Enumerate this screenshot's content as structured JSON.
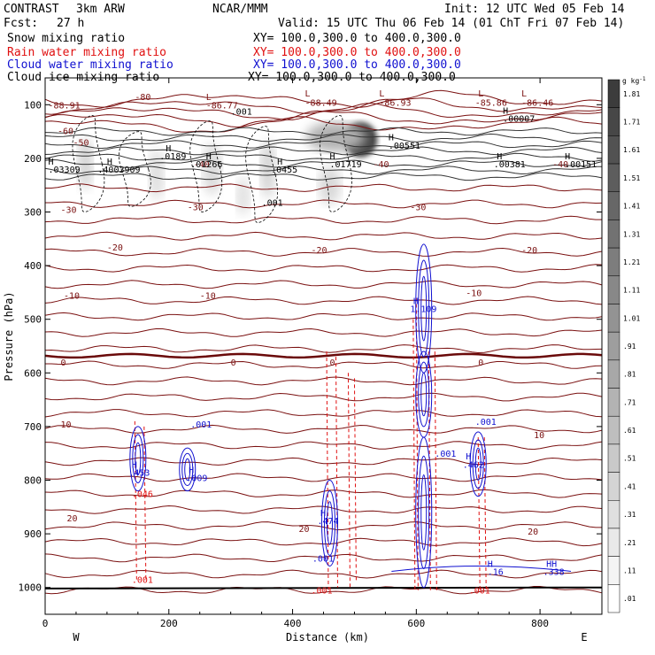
{
  "header": {
    "project": "CONTRAST",
    "model": "3km ARW",
    "org": "NCAR/MMM",
    "init": "Init: 12 UTC Wed 05 Feb 14",
    "fcst_label": "Fcst:",
    "fcst_value": "27 h",
    "valid": "Valid: 15 UTC Thu 06 Feb 14 (01 ChT Fri 07 Feb 14)"
  },
  "fields": [
    {
      "name": "Snow mixing ratio",
      "xy": "XY= 100.0,300.0 to 400.0,300.0",
      "color": "#000000"
    },
    {
      "name": "Rain water mixing ratio",
      "xy": "XY= 100.0,300.0 to 400.0,300.0",
      "color": "#e01010"
    },
    {
      "name": "Cloud water mixing ratio",
      "xy": "XY= 100.0,300.0 to 400.0,300.0",
      "color": "#1010d0"
    },
    {
      "name": "Cloud ice mixing ratio",
      "xy": "XY= 100.0,300.0 to 400.0,300.0",
      "color": "#000000"
    }
  ],
  "chart_data": {
    "type": "heatmap",
    "xlabel": "Distance (km)",
    "ylabel": "Pressure (hPa)",
    "xlim": [
      0,
      900
    ],
    "ylim": [
      1050,
      50
    ],
    "x_ticks": [
      "0",
      "200",
      "400",
      "600",
      "800"
    ],
    "y_ticks": [
      "100",
      "200",
      "300",
      "400",
      "500",
      "600",
      "700",
      "800",
      "900",
      "1000"
    ],
    "direction_left": "W",
    "direction_right": "E",
    "colorbar": {
      "unit": "g kg",
      "unit_exp": "-1",
      "levels": [
        "1.81",
        "1.71",
        "1.61",
        "1.51",
        "1.41",
        "1.31",
        "1.21",
        "1.11",
        "1.01",
        ".91",
        ".81",
        ".71",
        ".61",
        ".51",
        ".41",
        ".31",
        ".21",
        ".11",
        ".01"
      ]
    },
    "temperature_contours": {
      "color": "#7a1010",
      "labels": [
        {
          "text": "-80",
          "x": 145,
          "p": 85
        },
        {
          "text": "-60",
          "x": 20,
          "p": 148
        },
        {
          "text": "-50",
          "x": 45,
          "p": 170
        },
        {
          "text": "-40",
          "x": 240,
          "p": 210
        },
        {
          "text": "-40",
          "x": 530,
          "p": 210
        },
        {
          "text": "-40",
          "x": 820,
          "p": 210
        },
        {
          "text": "-30",
          "x": 25,
          "p": 295
        },
        {
          "text": "-30",
          "x": 230,
          "p": 290
        },
        {
          "text": "-30",
          "x": 590,
          "p": 290
        },
        {
          "text": "-20",
          "x": 100,
          "p": 365
        },
        {
          "text": "-20",
          "x": 430,
          "p": 370
        },
        {
          "text": "-20",
          "x": 770,
          "p": 370
        },
        {
          "text": "-10",
          "x": 30,
          "p": 455
        },
        {
          "text": "-10",
          "x": 250,
          "p": 455
        },
        {
          "text": "-10",
          "x": 680,
          "p": 450
        },
        {
          "text": "0",
          "x": 25,
          "p": 580
        },
        {
          "text": "0",
          "x": 300,
          "p": 580
        },
        {
          "text": "0",
          "x": 460,
          "p": 580
        },
        {
          "text": "0",
          "x": 700,
          "p": 580
        },
        {
          "text": "10",
          "x": 25,
          "p": 695
        },
        {
          "text": "10",
          "x": 790,
          "p": 715
        },
        {
          "text": "20",
          "x": 35,
          "p": 870
        },
        {
          "text": "20",
          "x": 410,
          "p": 890
        },
        {
          "text": "20",
          "x": 780,
          "p": 895
        }
      ]
    },
    "extrema_labels": [
      {
        "text": "-88.91",
        "x": 5,
        "p": 100,
        "color": "#7a1010"
      },
      {
        "text": "L",
        "x": 260,
        "p": 85,
        "color": "#7a1010"
      },
      {
        "text": "-86.77",
        "x": 260,
        "p": 100,
        "color": "#7a1010"
      },
      {
        "text": "L",
        "x": 420,
        "p": 78,
        "color": "#7a1010"
      },
      {
        "text": "-88.49",
        "x": 420,
        "p": 95,
        "color": "#7a1010"
      },
      {
        "text": "L",
        "x": 540,
        "p": 78,
        "color": "#7a1010"
      },
      {
        "text": "-86.93",
        "x": 540,
        "p": 95,
        "color": "#7a1010"
      },
      {
        "text": "L",
        "x": 700,
        "p": 78,
        "color": "#7a1010"
      },
      {
        "text": "-85.86",
        "x": 695,
        "p": 95,
        "color": "#7a1010"
      },
      {
        "text": "L",
        "x": 770,
        "p": 78,
        "color": "#7a1010"
      },
      {
        "text": "-86.46",
        "x": 770,
        "p": 95,
        "color": "#7a1010"
      },
      {
        "text": ".001",
        "x": 300,
        "p": 112,
        "color": "#000000"
      },
      {
        "text": "H",
        "x": 740,
        "p": 110,
        "color": "#000000"
      },
      {
        "text": ".00007",
        "x": 740,
        "p": 125,
        "color": "#000000"
      },
      {
        "text": "H",
        "x": 195,
        "p": 180,
        "color": "#000000"
      },
      {
        "text": ".0189",
        "x": 185,
        "p": 195,
        "color": "#000000"
      },
      {
        "text": "H",
        "x": 555,
        "p": 160,
        "color": "#000000"
      },
      {
        "text": ".00551",
        "x": 555,
        "p": 175,
        "color": "#000000"
      },
      {
        "text": "H",
        "x": 5,
        "p": 205,
        "color": "#000000"
      },
      {
        "text": ".03309",
        "x": 5,
        "p": 220,
        "color": "#000000"
      },
      {
        "text": "H",
        "x": 100,
        "p": 205,
        "color": "#000000"
      },
      {
        "text": ".4003909",
        "x": 85,
        "p": 220,
        "color": "#000000"
      },
      {
        "text": "H",
        "x": 260,
        "p": 195,
        "color": "#000000"
      },
      {
        "text": ".01266",
        "x": 235,
        "p": 210,
        "color": "#000000"
      },
      {
        "text": "H",
        "x": 375,
        "p": 205,
        "color": "#000000"
      },
      {
        "text": ".0455",
        "x": 365,
        "p": 220,
        "color": "#000000"
      },
      {
        "text": "H",
        "x": 460,
        "p": 195,
        "color": "#000000"
      },
      {
        "text": ".01719",
        "x": 460,
        "p": 210,
        "color": "#000000"
      },
      {
        "text": "H",
        "x": 730,
        "p": 195,
        "color": "#000000"
      },
      {
        "text": ".00381",
        "x": 725,
        "p": 210,
        "color": "#000000"
      },
      {
        "text": "H",
        "x": 840,
        "p": 195,
        "color": "#000000"
      },
      {
        "text": ".00151",
        "x": 840,
        "p": 210,
        "color": "#000000"
      },
      {
        "text": ".001",
        "x": 350,
        "p": 282,
        "color": "#000000"
      },
      {
        "text": ".001",
        "x": 235,
        "p": 695,
        "color": "#1010d0"
      },
      {
        "text": "H",
        "x": 140,
        "p": 770,
        "color": "#1010d0"
      },
      {
        "text": ".453",
        "x": 135,
        "p": 785,
        "color": "#1010d0"
      },
      {
        "text": ".046",
        "x": 140,
        "p": 825,
        "color": "#e01010"
      },
      {
        "text": "H",
        "x": 232,
        "p": 780,
        "color": "#1010d0"
      },
      {
        "text": ".009",
        "x": 228,
        "p": 795,
        "color": "#1010d0"
      },
      {
        "text": "H",
        "x": 445,
        "p": 860,
        "color": "#1010d0"
      },
      {
        "text": ".474",
        "x": 440,
        "p": 875,
        "color": "#1010d0"
      },
      {
        "text": ".001",
        "x": 432,
        "p": 945,
        "color": "#1010d0"
      },
      {
        "text": ".001",
        "x": 430,
        "p": 1005,
        "color": "#e01010"
      },
      {
        "text": ".001",
        "x": 140,
        "p": 985,
        "color": "#e01010"
      },
      {
        "text": "H",
        "x": 595,
        "p": 465,
        "color": "#1010d0"
      },
      {
        "text": "1.109",
        "x": 590,
        "p": 480,
        "color": "#1010d0"
      },
      {
        "text": "H",
        "x": 680,
        "p": 755,
        "color": "#1010d0"
      },
      {
        "text": ".462",
        "x": 675,
        "p": 770,
        "color": "#1010d0"
      },
      {
        "text": ".001",
        "x": 695,
        "p": 690,
        "color": "#1010d0"
      },
      {
        "text": ".001",
        "x": 630,
        "p": 750,
        "color": "#1010d0"
      },
      {
        "text": "H",
        "x": 715,
        "p": 955,
        "color": "#1010d0"
      },
      {
        "text": ".16",
        "x": 715,
        "p": 970,
        "color": "#1010d0"
      },
      {
        "text": "HH",
        "x": 810,
        "p": 955,
        "color": "#1010d0"
      },
      {
        "text": ".338",
        "x": 805,
        "p": 970,
        "color": "#1010d0"
      },
      {
        "text": ".001",
        "x": 685,
        "p": 1005,
        "color": "#e01010"
      }
    ],
    "snow_blobs": [
      {
        "x": 510,
        "p": 165,
        "w": 45,
        "h": 55,
        "q": 1.4
      },
      {
        "x": 470,
        "p": 160,
        "w": 80,
        "h": 45,
        "q": 0.5
      },
      {
        "x": 460,
        "p": 250,
        "w": 30,
        "h": 60,
        "q": 0.15
      },
      {
        "x": 360,
        "p": 220,
        "w": 20,
        "h": 90,
        "q": 0.2
      },
      {
        "x": 270,
        "p": 220,
        "w": 25,
        "h": 80,
        "q": 0.15
      },
      {
        "x": 180,
        "p": 230,
        "w": 20,
        "h": 80,
        "q": 0.12
      },
      {
        "x": 65,
        "p": 210,
        "w": 20,
        "h": 80,
        "q": 0.2
      },
      {
        "x": 320,
        "p": 270,
        "w": 18,
        "h": 60,
        "q": 0.1
      }
    ]
  }
}
